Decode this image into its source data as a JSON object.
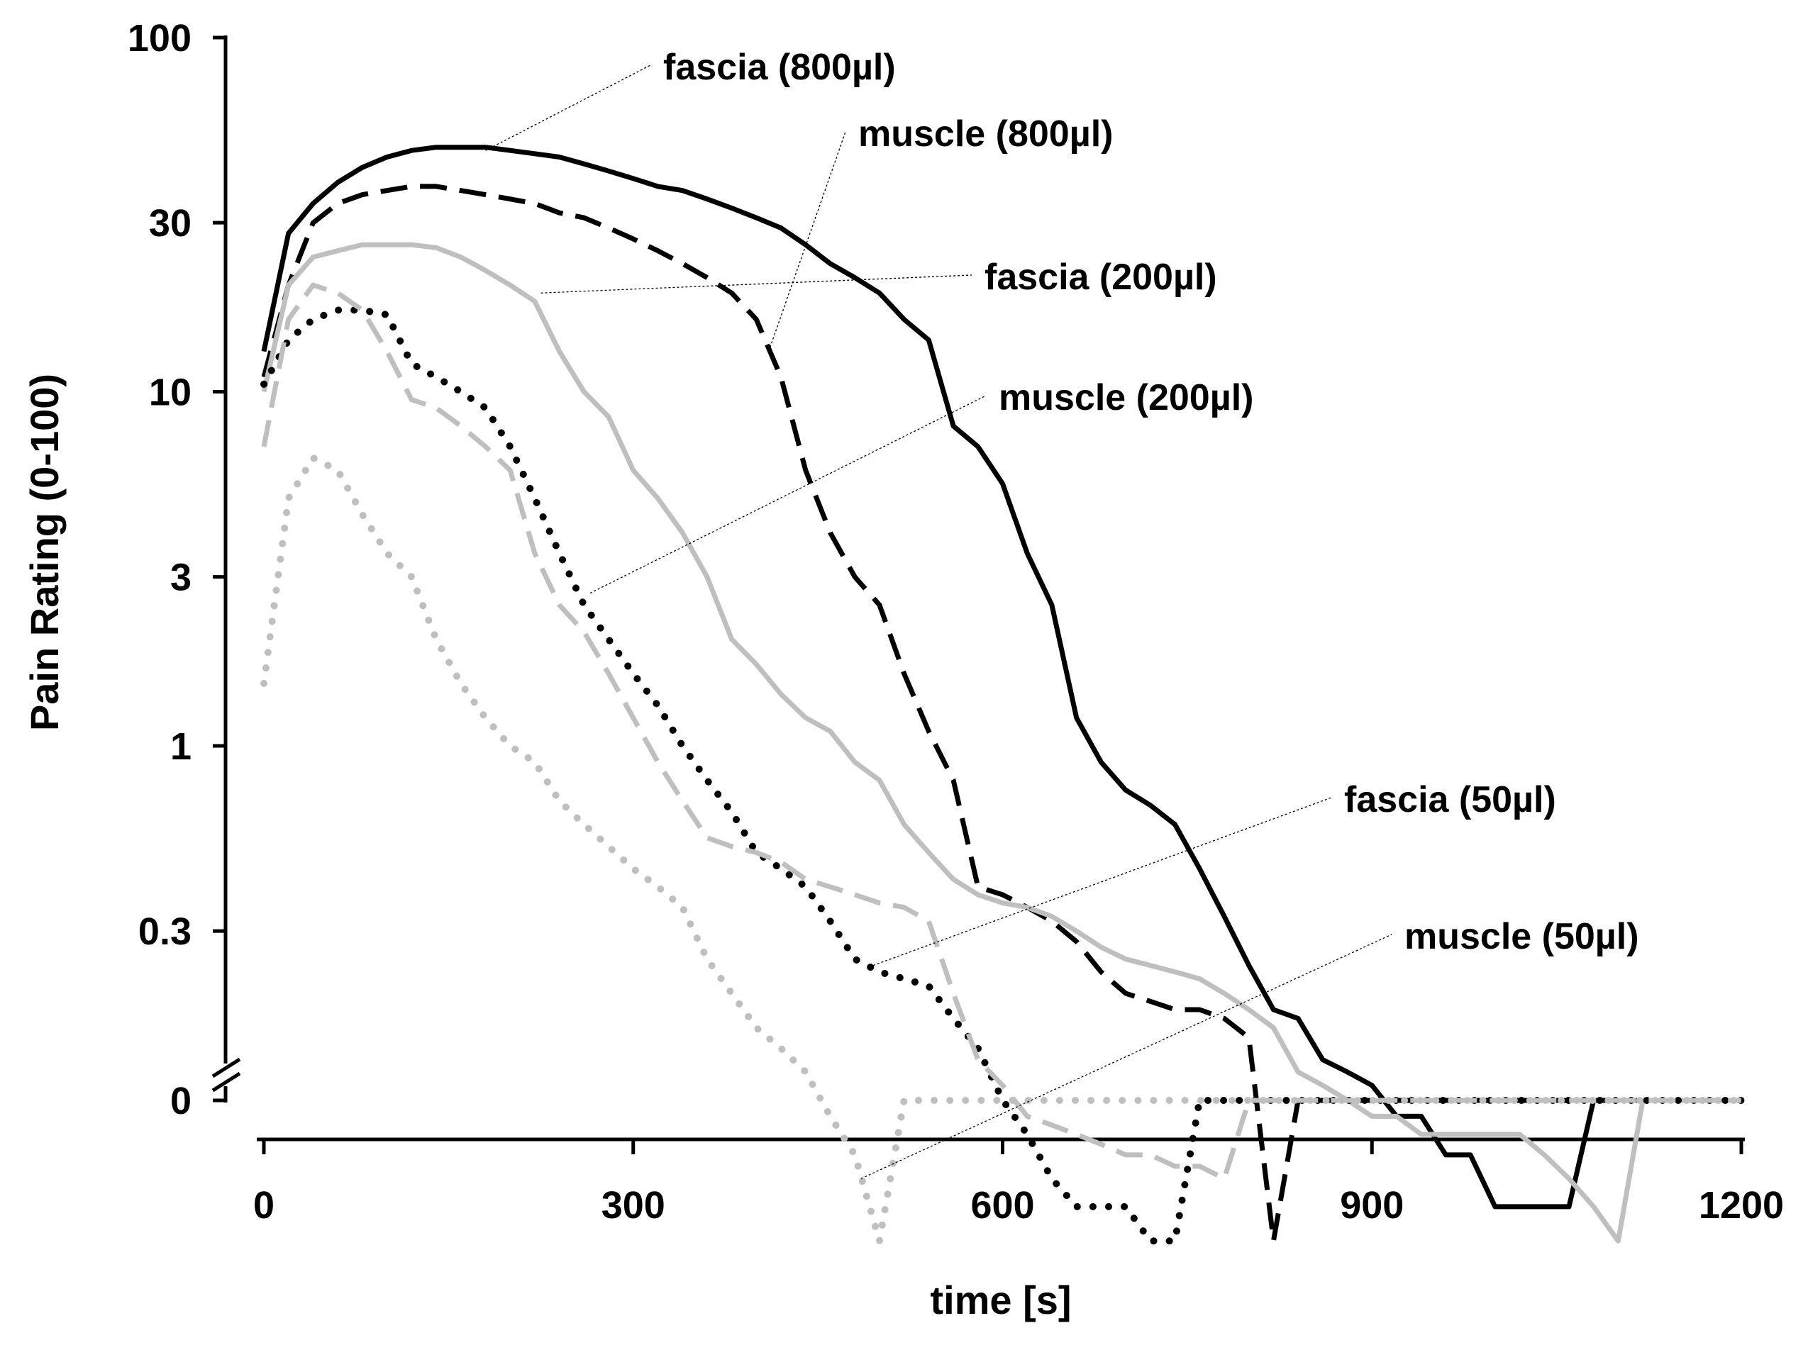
{
  "chart_data": {
    "type": "line",
    "title": "",
    "xlabel": "time [s]",
    "ylabel": "Pain Rating (0-100)",
    "xlim": [
      0,
      1200
    ],
    "ylim": [
      0,
      100
    ],
    "y_scale": "log with axis break at 0",
    "grid": false,
    "x_ticks": [
      {
        "value": 0,
        "label": "0"
      },
      {
        "value": 300,
        "label": "300"
      },
      {
        "value": 600,
        "label": "600"
      },
      {
        "value": 900,
        "label": "900"
      },
      {
        "value": 1200,
        "label": "1200"
      }
    ],
    "y_ticks": [
      {
        "value": 100,
        "label": "100"
      },
      {
        "value": 30,
        "label": "30"
      },
      {
        "value": 10,
        "label": "10"
      },
      {
        "value": 3,
        "label": "3"
      },
      {
        "value": 1,
        "label": "1"
      },
      {
        "value": 0.3,
        "label": "0.3"
      },
      {
        "value": 0,
        "label": "0"
      }
    ],
    "series": [
      {
        "name": "fascia (800µl)",
        "color": "#000000",
        "style": "solid",
        "label_anchor": [
          180,
          48
        ],
        "x": [
          0,
          20,
          40,
          60,
          80,
          100,
          120,
          140,
          160,
          180,
          200,
          220,
          240,
          260,
          280,
          300,
          320,
          340,
          360,
          380,
          400,
          420,
          440,
          460,
          480,
          500,
          520,
          540,
          560,
          580,
          600,
          620,
          640,
          660,
          680,
          700,
          720,
          740,
          760,
          780,
          800,
          820,
          840,
          860,
          880,
          900,
          920,
          940,
          960,
          980,
          1000,
          1020,
          1040,
          1060,
          1080,
          1100,
          1120,
          1140,
          1160,
          1180,
          1200
        ],
        "y": [
          13,
          28,
          34,
          39,
          43,
          46,
          48,
          49,
          49,
          49,
          48,
          47,
          46,
          44,
          42,
          40,
          38,
          37,
          35,
          33,
          31,
          29,
          26,
          23,
          21,
          19,
          16,
          14,
          8,
          7,
          5.5,
          3.5,
          2.5,
          1.2,
          0.9,
          0.75,
          0.68,
          0.6,
          0.45,
          0.33,
          0.24,
          0.18,
          0.17,
          0.13,
          0.12,
          0.11,
          0.09,
          0.09,
          0.07,
          0.07,
          0.05,
          0.05,
          0.05,
          0.05,
          0.03,
          0.03,
          0.03,
          0.03,
          0.03,
          0.03,
          0.03
        ]
      },
      {
        "name": "muscle (800µl)",
        "color": "#000000",
        "style": "dashed",
        "label_anchor": [
          410,
          13
        ],
        "x": [
          0,
          20,
          40,
          60,
          80,
          100,
          120,
          140,
          160,
          180,
          200,
          220,
          240,
          260,
          280,
          300,
          320,
          340,
          360,
          380,
          400,
          420,
          440,
          460,
          480,
          500,
          520,
          540,
          560,
          580,
          600,
          620,
          640,
          660,
          680,
          700,
          720,
          740,
          760,
          780,
          800,
          820,
          840,
          860,
          880,
          900,
          920,
          940,
          960,
          980,
          1000,
          1020,
          1040,
          1060,
          1080,
          1100,
          1120,
          1140,
          1160,
          1180,
          1200
        ],
        "y": [
          11,
          20,
          30,
          34,
          36,
          37,
          38,
          38,
          37,
          36,
          35,
          34,
          32,
          31,
          29,
          27,
          25,
          23,
          21,
          19,
          16,
          11,
          6,
          4,
          3,
          2.5,
          1.6,
          1.1,
          0.8,
          0.4,
          0.38,
          0.35,
          0.32,
          0.28,
          0.23,
          0.2,
          0.19,
          0.18,
          0.18,
          0.17,
          0.15,
          0.04,
          0.03,
          0.03,
          0.03,
          0.03,
          0.03,
          0.03,
          0.03,
          0.03,
          0.03,
          0.03,
          0.03,
          0.03,
          0.03,
          0.03,
          0.03,
          0.03,
          0.03,
          0.03,
          0.03
        ]
      },
      {
        "name": "fascia (200µl)",
        "color": "#bfbfbf",
        "style": "solid",
        "label_anchor": [
          225,
          19
        ],
        "x": [
          0,
          20,
          40,
          60,
          80,
          100,
          120,
          140,
          160,
          180,
          200,
          220,
          240,
          260,
          280,
          300,
          320,
          340,
          360,
          380,
          400,
          420,
          440,
          460,
          480,
          500,
          520,
          540,
          560,
          580,
          600,
          620,
          640,
          660,
          680,
          700,
          720,
          740,
          760,
          780,
          800,
          820,
          840,
          860,
          880,
          900,
          920,
          940,
          960,
          980,
          1000,
          1020,
          1040,
          1060,
          1080,
          1100,
          1120,
          1140,
          1160,
          1180,
          1200
        ],
        "y": [
          10,
          20,
          24,
          25,
          26,
          26,
          26,
          25.5,
          24,
          22,
          20,
          18,
          13,
          10,
          8.5,
          6,
          5,
          4,
          3,
          2,
          1.7,
          1.4,
          1.2,
          1.1,
          0.9,
          0.8,
          0.6,
          0.5,
          0.42,
          0.38,
          0.36,
          0.35,
          0.33,
          0.3,
          0.27,
          0.25,
          0.24,
          0.23,
          0.22,
          0.2,
          0.18,
          0.16,
          0.12,
          0.11,
          0.1,
          0.09,
          0.09,
          0.08,
          0.08,
          0.08,
          0.08,
          0.08,
          0.07,
          0.06,
          0.05,
          0.04,
          0.03,
          0.03,
          0.03,
          0.03,
          0.03
        ]
      },
      {
        "name": "muscle (200µl)",
        "color": "#000000",
        "style": "dotted",
        "label_anchor": [
          265,
          2.7
        ],
        "x": [
          0,
          20,
          40,
          60,
          80,
          100,
          120,
          140,
          160,
          180,
          200,
          220,
          240,
          260,
          280,
          300,
          320,
          340,
          360,
          380,
          400,
          420,
          440,
          460,
          480,
          500,
          520,
          540,
          560,
          580,
          600,
          620,
          640,
          660,
          680,
          700,
          720,
          740,
          760,
          780,
          800,
          820,
          840,
          860,
          880,
          900,
          920,
          940,
          960,
          980,
          1000,
          1020,
          1040,
          1060,
          1080,
          1100,
          1120,
          1140,
          1160,
          1180,
          1200
        ],
        "y": [
          10.5,
          14,
          16,
          17,
          17,
          16.5,
          12,
          11,
          10,
          9,
          7,
          5,
          3.5,
          2.5,
          2,
          1.6,
          1.3,
          1,
          0.8,
          0.65,
          0.5,
          0.45,
          0.4,
          0.32,
          0.25,
          0.23,
          0.22,
          0.21,
          0.17,
          0.14,
          0.1,
          0.08,
          0.06,
          0.05,
          0.05,
          0.05,
          0.04,
          0.04,
          0.03,
          0.03,
          0.03,
          0.03,
          0.03,
          0.03,
          0.03,
          0.03,
          0.03,
          0.03,
          0.03,
          0.03,
          0.03,
          0.03,
          0.03,
          0.03,
          0.03,
          0.03,
          0.03,
          0.03,
          0.03,
          0.03,
          0.03
        ]
      },
      {
        "name": "fascia (50µl)",
        "color": "#bfbfbf",
        "style": "dashed",
        "label_anchor": [
          495,
          0.24
        ],
        "x": [
          0,
          20,
          40,
          60,
          80,
          100,
          120,
          140,
          160,
          180,
          200,
          220,
          240,
          260,
          280,
          300,
          320,
          340,
          360,
          380,
          400,
          420,
          440,
          460,
          480,
          500,
          520,
          540,
          560,
          580,
          600,
          620,
          640,
          660,
          680,
          700,
          720,
          740,
          760,
          780,
          800,
          820,
          840,
          860,
          880,
          900,
          920,
          940,
          960,
          980,
          1000,
          1020,
          1040,
          1060,
          1080,
          1100,
          1120,
          1140,
          1160,
          1180,
          1200
        ],
        "y": [
          7,
          16,
          20,
          19,
          17,
          13,
          9.5,
          9,
          8,
          7,
          6,
          3.5,
          2.5,
          2.1,
          1.6,
          1.2,
          0.9,
          0.7,
          0.55,
          0.52,
          0.5,
          0.47,
          0.42,
          0.4,
          0.38,
          0.36,
          0.35,
          0.32,
          0.2,
          0.13,
          0.11,
          0.09,
          0.085,
          0.08,
          0.075,
          0.07,
          0.07,
          0.065,
          0.065,
          0.06,
          0.03,
          0.03,
          0.03,
          0.03,
          0.03,
          0.03,
          0.03,
          0.03,
          0.03,
          0.03,
          0.03,
          0.03,
          0.03,
          0.03,
          0.03,
          0.03,
          0.03,
          0.03,
          0.03,
          0.03,
          0.03
        ]
      },
      {
        "name": "muscle (50µl)",
        "color": "#bfbfbf",
        "style": "dotted",
        "label_anchor": [
          485,
          0.06
        ],
        "x": [
          0,
          20,
          40,
          60,
          80,
          100,
          120,
          140,
          160,
          180,
          200,
          220,
          240,
          260,
          280,
          300,
          320,
          340,
          360,
          380,
          400,
          420,
          440,
          460,
          480,
          500,
          520,
          540,
          560,
          580,
          600,
          620,
          640,
          660,
          680,
          700,
          720,
          740,
          760,
          780,
          800,
          820,
          840,
          860,
          880,
          900,
          920,
          940,
          960,
          980,
          1000,
          1020,
          1040,
          1060,
          1080,
          1100,
          1120,
          1140,
          1160,
          1180,
          1200
        ],
        "y": [
          1.5,
          5,
          6.5,
          6,
          4.5,
          3.5,
          3,
          2,
          1.5,
          1.2,
          1,
          0.9,
          0.7,
          0.6,
          0.52,
          0.45,
          0.4,
          0.35,
          0.25,
          0.2,
          0.16,
          0.14,
          0.12,
          0.09,
          0.07,
          0.04,
          0.03,
          0.03,
          0.03,
          0.03,
          0.03,
          0.03,
          0.03,
          0.03,
          0.03,
          0.03,
          0.03,
          0.03,
          0.03,
          0.03,
          0.03,
          0.03,
          0.03,
          0.03,
          0.03,
          0.03,
          0.03,
          0.03,
          0.03,
          0.03,
          0.03,
          0.03,
          0.03,
          0.03,
          0.03,
          0.03,
          0.03,
          0.03,
          0.03,
          0.03,
          0.03
        ]
      }
    ]
  }
}
